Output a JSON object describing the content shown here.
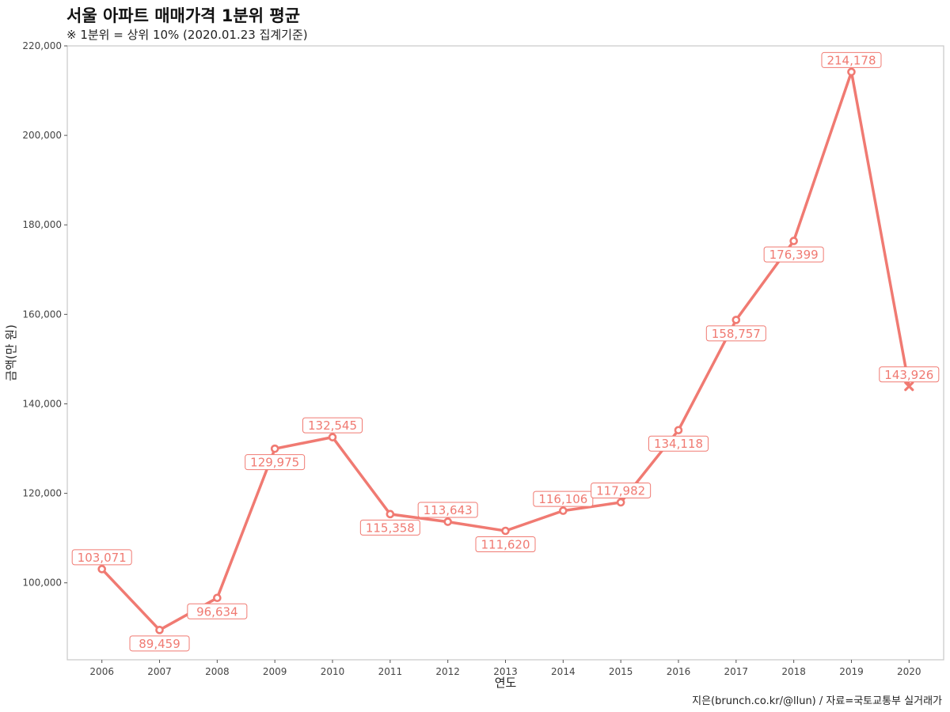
{
  "chart_data": {
    "type": "line",
    "title": "서울 아파트 매매가격 1분위 평균",
    "subtitle": "※ 1분위 = 상위 10% (2020.01.23 집계기준)",
    "xlabel": "연도",
    "ylabel": "금액(만 원)",
    "caption": "지은(brunch.co.kr/@llun) / 자료=국토교통부 실거래가",
    "x": [
      2006,
      2007,
      2008,
      2009,
      2010,
      2011,
      2012,
      2013,
      2014,
      2015,
      2016,
      2017,
      2018,
      2019,
      2020
    ],
    "values": [
      103071,
      89459,
      96634,
      129975,
      132545,
      115358,
      113643,
      111620,
      116106,
      117982,
      134118,
      158757,
      176399,
      214178,
      143926
    ],
    "labels": [
      "103,071",
      "89,459",
      "96,634",
      "129,975",
      "132,545",
      "115,358",
      "113,643",
      "111,620",
      "116,106",
      "117,982",
      "134,118",
      "158,757",
      "176,399",
      "214,178",
      "143,926"
    ],
    "label_position": [
      "above",
      "below",
      "below",
      "below",
      "above",
      "below",
      "above",
      "below",
      "above",
      "above",
      "below",
      "below",
      "below",
      "above",
      "above"
    ],
    "marker": [
      "circle",
      "circle",
      "circle",
      "circle",
      "circle",
      "circle",
      "circle",
      "circle",
      "circle",
      "circle",
      "circle",
      "circle",
      "circle",
      "circle",
      "cross"
    ],
    "yticks": [
      100000,
      120000,
      140000,
      160000,
      180000,
      200000,
      220000
    ],
    "ytick_labels": [
      "100,000",
      "120,000",
      "140,000",
      "160,000",
      "180,000",
      "200,000",
      "220,000"
    ],
    "xlim": [
      2005.4,
      2020.6
    ],
    "ylim": [
      82800,
      220000
    ],
    "grid": false,
    "color": "#F07A72"
  }
}
